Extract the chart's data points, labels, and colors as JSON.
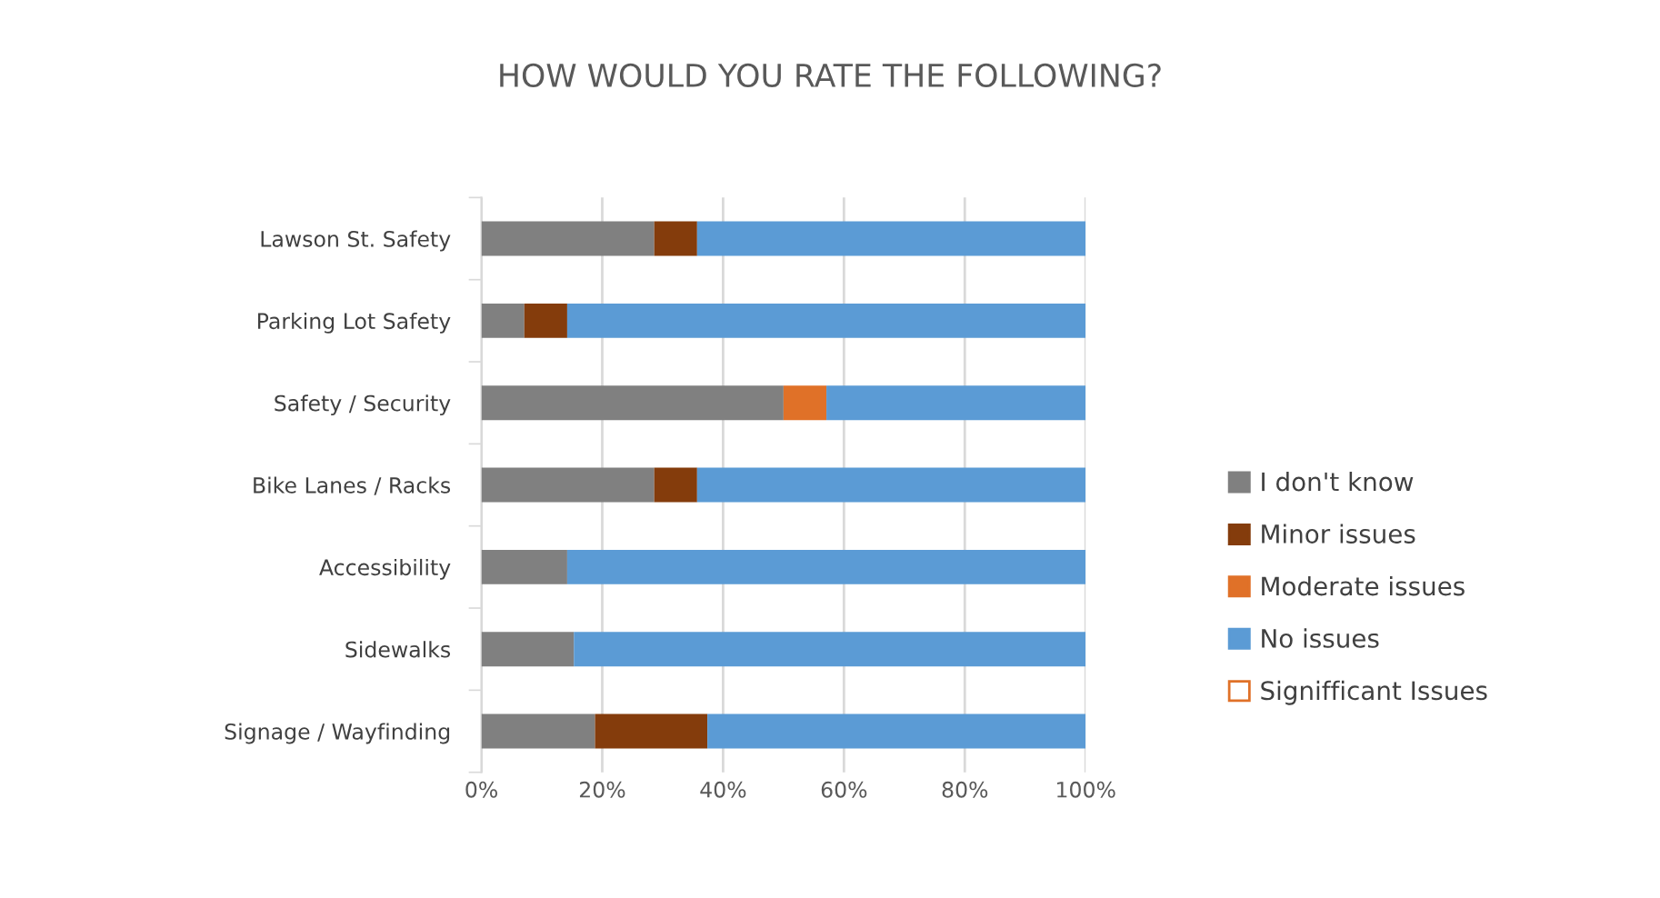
{
  "chart_data": {
    "type": "bar",
    "orientation": "horizontal",
    "stacked": true,
    "title": "HOW WOULD YOU RATE THE FOLLOWING?",
    "categories": [
      "Lawson St. Safety",
      "Parking Lot Safety",
      "Safety / Security",
      "Bike Lanes / Racks",
      "Accessibility",
      "Sidewalks",
      "Signage / Wayfinding"
    ],
    "series": [
      {
        "name": "I don't know",
        "color": "#808080",
        "values": [
          28.6,
          7.1,
          50,
          28.6,
          14.2,
          15.3,
          18.8
        ]
      },
      {
        "name": "Minor issues",
        "color": "#843c0c",
        "values": [
          7.1,
          7.1,
          0,
          7.1,
          0,
          0,
          18.6
        ]
      },
      {
        "name": "Moderate issues",
        "color": "#e07128",
        "values": [
          0,
          0,
          7.1,
          0,
          0,
          0,
          0
        ]
      },
      {
        "name": "No issues",
        "color": "#5b9bd5",
        "values": [
          64.3,
          85.8,
          42.9,
          64.3,
          85.8,
          84.7,
          62.6
        ]
      },
      {
        "name": "Signifficant Issues",
        "color": "#ffffff",
        "values": [
          0,
          0,
          0,
          0,
          0,
          0,
          0
        ]
      }
    ],
    "xlim": [
      0,
      100
    ],
    "xticks": [
      {
        "value": 0,
        "label": "0%"
      },
      {
        "value": 20,
        "label": "20%"
      },
      {
        "value": 40,
        "label": "40%"
      },
      {
        "value": 60,
        "label": "60%"
      },
      {
        "value": 80,
        "label": "80%"
      },
      {
        "value": 100,
        "label": "100%"
      }
    ],
    "grid": "x",
    "legend": "right"
  }
}
